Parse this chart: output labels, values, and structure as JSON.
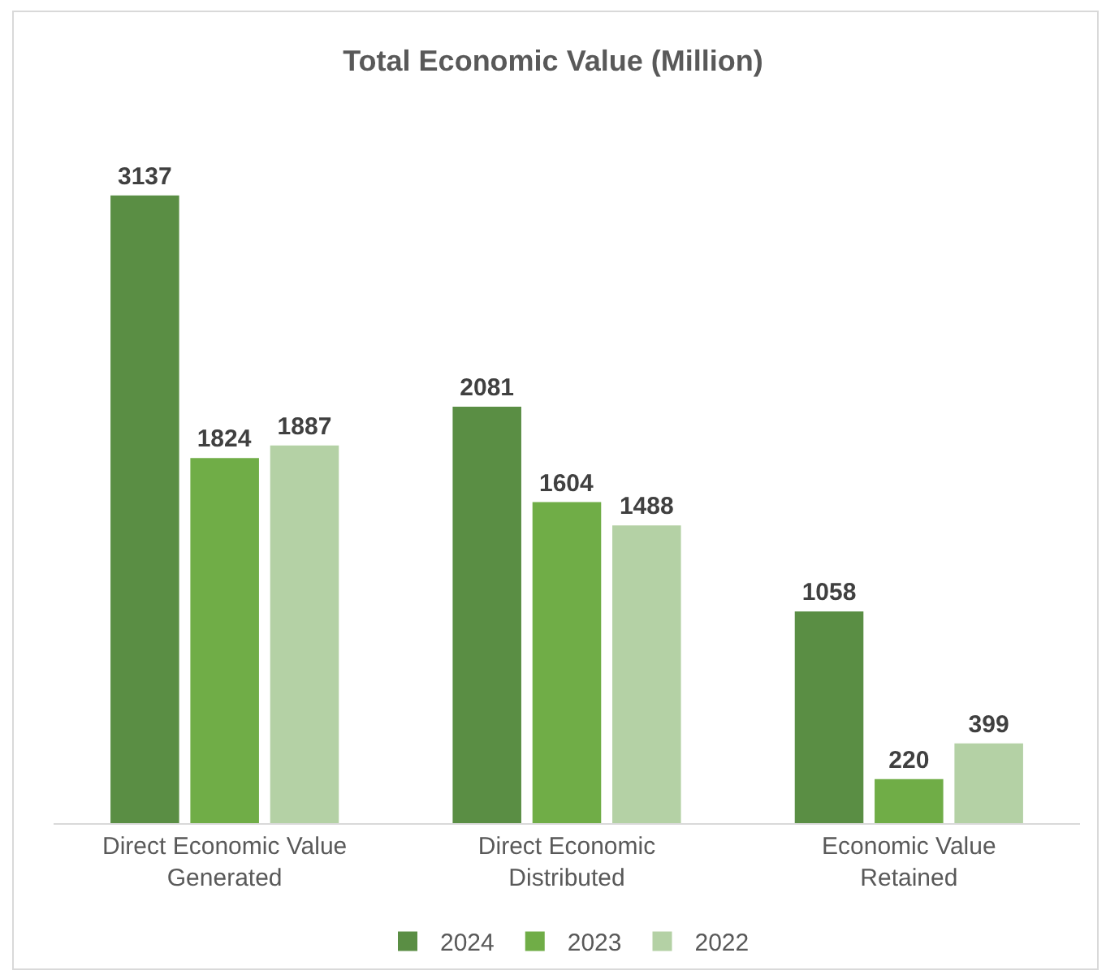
{
  "chart_data": {
    "type": "bar",
    "title": "Total Economic Value (Million)",
    "categories": [
      "Direct Economic Value Generated",
      "Direct Economic Distributed",
      "Economic Value Retained"
    ],
    "series": [
      {
        "name": "2024",
        "color": "#5a8e44",
        "values": [
          3137,
          2081,
          1058
        ]
      },
      {
        "name": "2023",
        "color": "#70ad47",
        "values": [
          1824,
          1604,
          220
        ]
      },
      {
        "name": "2022",
        "color": "#b4d1a5",
        "values": [
          1887,
          1488,
          399
        ]
      }
    ],
    "tick_labels": "x",
    "data_labels": true,
    "legend": "bottom"
  }
}
